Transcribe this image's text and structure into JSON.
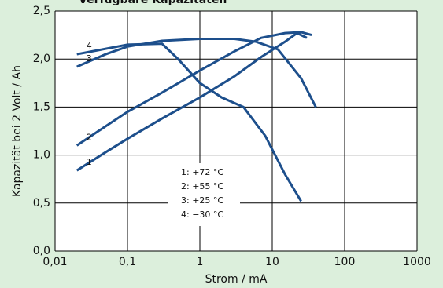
{
  "chart_data": {
    "type": "line",
    "title": "Verfügbare Kapazitäten",
    "xlabel": "Strom / mA",
    "ylabel": "Kapazität bei 2 Volt / Ah",
    "xlog": true,
    "xlim": [
      0.01,
      1000
    ],
    "xticks": [
      {
        "value": 0.01,
        "label": "0,01"
      },
      {
        "value": 0.1,
        "label": "0,1"
      },
      1,
      10,
      100,
      1000
    ],
    "ylim": [
      0,
      2.5
    ],
    "yticks": [
      {
        "value": 0,
        "label": "0,0"
      },
      {
        "value": 0.5,
        "label": "0,5"
      },
      {
        "value": 1,
        "label": "1,0"
      },
      {
        "value": 1.5,
        "label": "1,5"
      },
      {
        "value": 2,
        "label": "2,0"
      },
      {
        "value": 2.5,
        "label": "2,5"
      }
    ],
    "grid": true,
    "series": [
      {
        "name": "1",
        "label": "1:   +72 °C",
        "color": "#1d4f8c",
        "x": [
          0.02,
          0.05,
          0.1,
          0.3,
          1,
          3,
          7,
          15,
          22,
          30
        ],
        "values": [
          0.84,
          1.03,
          1.17,
          1.38,
          1.6,
          1.82,
          2.02,
          2.18,
          2.27,
          2.22
        ]
      },
      {
        "name": "2",
        "label": "2:   +55 °C",
        "color": "#1d4f8c",
        "x": [
          0.02,
          0.05,
          0.1,
          0.3,
          1,
          3,
          7,
          15,
          25,
          35
        ],
        "values": [
          1.1,
          1.3,
          1.45,
          1.65,
          1.88,
          2.08,
          2.22,
          2.27,
          2.28,
          2.25
        ]
      },
      {
        "name": "3",
        "label": "3:   +25 °C",
        "color": "#1d4f8c",
        "x": [
          0.02,
          0.05,
          0.1,
          0.3,
          1,
          3,
          6,
          12,
          25,
          40
        ],
        "values": [
          1.92,
          2.05,
          2.13,
          2.19,
          2.21,
          2.21,
          2.18,
          2.1,
          1.8,
          1.5
        ]
      },
      {
        "name": "4",
        "label": "4:   −30 °C",
        "color": "#1d4f8c",
        "x": [
          0.02,
          0.1,
          0.3,
          0.5,
          1,
          2,
          4,
          8,
          15,
          25
        ],
        "values": [
          2.05,
          2.15,
          2.16,
          2.0,
          1.75,
          1.6,
          1.5,
          1.2,
          0.8,
          0.52
        ]
      }
    ]
  }
}
